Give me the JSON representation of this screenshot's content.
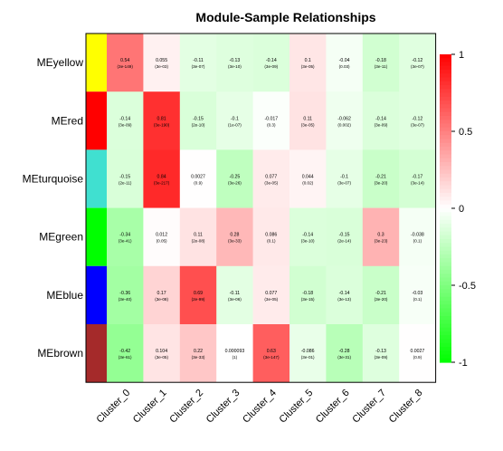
{
  "chart_data": {
    "type": "heatmap",
    "title": "Module-Sample Relationships",
    "rows": [
      "MEyellow",
      "MEred",
      "MEturquoise",
      "MEgreen",
      "MEblue",
      "MEbrown"
    ],
    "row_colors": [
      "#ffff00",
      "#ff0000",
      "#40e0d0",
      "#00ff00",
      "#0000ff",
      "#a52a2a"
    ],
    "columns": [
      "Cluster_0",
      "Cluster_1",
      "Cluster_2",
      "Cluster_3",
      "Cluster_4",
      "Cluster_5",
      "Cluster_6",
      "Cluster_7",
      "Cluster_8"
    ],
    "values": [
      [
        0.54,
        0.055,
        -0.11,
        -0.13,
        -0.14,
        0.1,
        -0.04,
        -0.18,
        -0.12
      ],
      [
        -0.14,
        0.81,
        -0.15,
        -0.1,
        -0.017,
        0.11,
        -0.062,
        -0.14,
        -0.12
      ],
      [
        -0.15,
        0.84,
        0.0027,
        -0.25,
        0.077,
        0.044,
        -0.1,
        -0.21,
        -0.17
      ],
      [
        -0.34,
        0.012,
        0.11,
        0.28,
        0.086,
        -0.14,
        -0.15,
        0.3,
        -0.038
      ],
      [
        -0.36,
        0.17,
        0.69,
        -0.11,
        0.077,
        -0.18,
        -0.14,
        -0.21,
        -0.03
      ],
      [
        -0.42,
        0.104,
        0.22,
        9.3e-05,
        0.63,
        -0.086,
        -0.28,
        -0.13,
        0.0027
      ]
    ],
    "pvalues": [
      [
        "(3e-149)",
        "(3e-03)",
        "(3e-07)",
        "(3e-10)",
        "(3e-09)",
        "(3e-05)",
        "(0.03)",
        "(3e-11)",
        "(3e-07)"
      ],
      [
        "(3e-09)",
        "(3e-190)",
        "(2e-10)",
        "(1e-07)",
        "(0.3)",
        "(3e-05)",
        "(0.002)",
        "(3e-09)",
        "(3e-07)"
      ],
      [
        "(2e-11)",
        "(3e-217)",
        "(0.9)",
        "(3e-26)",
        "(3e-05)",
        "(0.02)",
        "(3e-07)",
        "(3e-20)",
        "(3e-14)"
      ],
      [
        "(3e-41)",
        "(0.05)",
        "(2e-08)",
        "(3e-33)",
        "(0.1)",
        "(3e-10)",
        "(2e-14)",
        "(3e-23)",
        "(0.1)"
      ],
      [
        "(3e-40)",
        "(3e-08)",
        "(2e-99)",
        "(3e-06)",
        "(3e-05)",
        "(3e-15)",
        "(3e-13)",
        "(3e-20)",
        "(0.1)"
      ],
      [
        "(3e-61)",
        "(3e-05)",
        "(3e-33)",
        "(1)",
        "(3e-147)",
        "(3e-01)",
        "(3e-31)",
        "(3e-09)",
        "(0.9)"
      ]
    ],
    "color_scale": {
      "min": -1,
      "max": 1,
      "low_color": "#00ff00",
      "mid_color": "#ffffff",
      "high_color": "#ff0000"
    },
    "colorbar_ticks": [
      "1",
      "0.5",
      "0",
      "-0.5",
      "-1"
    ],
    "colorbar_tick_values": [
      1,
      0.5,
      0,
      -0.5,
      -1
    ]
  }
}
